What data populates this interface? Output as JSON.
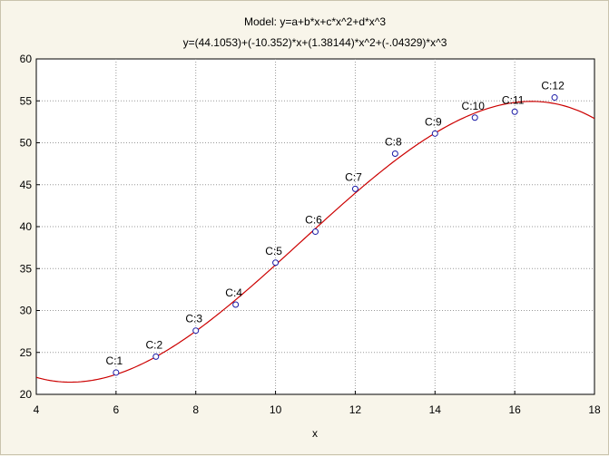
{
  "chart_data": {
    "type": "scatter",
    "title": "Model: y=a+b*x+c*x^2+d*x^3",
    "subtitle": "y=(44.1053)+(-10.352)*x+(1.38144)*x^2+(-.04329)*x^3",
    "xlabel": "x",
    "ylabel": "",
    "xlim": [
      4,
      18
    ],
    "ylim": [
      20,
      60
    ],
    "x_ticks": [
      4,
      6,
      8,
      10,
      12,
      14,
      16,
      18
    ],
    "y_ticks": [
      20,
      25,
      30,
      35,
      40,
      45,
      50,
      55,
      60
    ],
    "grid": true,
    "points": [
      {
        "label": "C:1",
        "x": 6,
        "y": 22.6
      },
      {
        "label": "C:2",
        "x": 7,
        "y": 24.5
      },
      {
        "label": "C:3",
        "x": 8,
        "y": 27.6
      },
      {
        "label": "C:4",
        "x": 9,
        "y": 30.7
      },
      {
        "label": "C:5",
        "x": 10,
        "y": 35.7
      },
      {
        "label": "C:6",
        "x": 11,
        "y": 39.4
      },
      {
        "label": "C:7",
        "x": 12,
        "y": 44.5
      },
      {
        "label": "C:8",
        "x": 13,
        "y": 48.7
      },
      {
        "label": "C:9",
        "x": 14,
        "y": 51.1
      },
      {
        "label": "C:10",
        "x": 15,
        "y": 53.0
      },
      {
        "label": "C:11",
        "x": 16,
        "y": 53.7
      },
      {
        "label": "C:12",
        "x": 17,
        "y": 55.4
      }
    ],
    "fit": {
      "a": 44.1053,
      "b": -10.352,
      "c": 1.38144,
      "d": -0.04329
    },
    "colors": {
      "fit_line": "#cc0000",
      "marker": "#1a1aa6",
      "grid": "#9a9a9a",
      "plot_bg": "#ffffff"
    }
  }
}
